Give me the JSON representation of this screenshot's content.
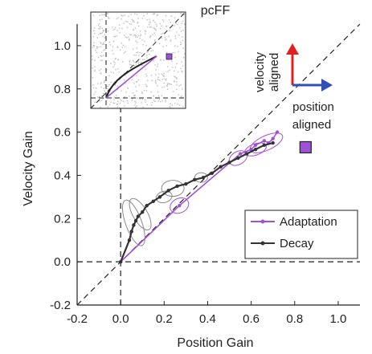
{
  "chart_data": {
    "type": "line",
    "title": "pcFF",
    "xlabel": "Position Gain",
    "ylabel": "Velocity Gain",
    "xlim": [
      -0.2,
      1.1
    ],
    "ylim": [
      -0.2,
      1.1
    ],
    "xticks": [
      "-0.2",
      "0.0",
      "0.2",
      "0.4",
      "0.6",
      "0.8",
      "1.0"
    ],
    "xtick_values": [
      -0.2,
      0.0,
      0.2,
      0.4,
      0.6,
      0.8,
      1.0
    ],
    "yticks": [
      "-0.2",
      "0.0",
      "0.2",
      "0.4",
      "0.6",
      "0.8",
      "1.0"
    ],
    "ytick_values": [
      -0.2,
      0.0,
      0.2,
      0.4,
      0.6,
      0.8,
      1.0
    ],
    "grid": false,
    "legend_position": "lower-right",
    "series": [
      {
        "name": "Adaptation",
        "color": "#a050d8",
        "x": [
          0.0,
          0.27,
          0.55,
          0.6,
          0.62,
          0.66,
          0.68,
          0.7,
          0.72
        ],
        "y": [
          0.0,
          0.26,
          0.5,
          0.52,
          0.54,
          0.56,
          0.55,
          0.57,
          0.6
        ]
      },
      {
        "name": "Decay",
        "color": "#333333",
        "x": [
          0.0,
          0.04,
          0.05,
          0.06,
          0.07,
          0.08,
          0.1,
          0.12,
          0.15,
          0.18,
          0.22,
          0.26,
          0.3,
          0.34,
          0.38,
          0.42,
          0.46,
          0.5,
          0.54,
          0.58,
          0.62,
          0.66,
          0.7
        ],
        "y": [
          0.0,
          0.1,
          0.14,
          0.17,
          0.19,
          0.21,
          0.23,
          0.26,
          0.28,
          0.3,
          0.33,
          0.35,
          0.36,
          0.38,
          0.39,
          0.41,
          0.44,
          0.46,
          0.48,
          0.5,
          0.52,
          0.54,
          0.55
        ]
      }
    ],
    "reference_point": {
      "x": 0.85,
      "y": 0.53,
      "color": "#a050d8"
    },
    "annotations": {
      "velocity_line1": "velocity",
      "velocity_line2": "aligned",
      "position_line1": "position",
      "position_line2": "aligned"
    },
    "arrow_colors": {
      "velocity": "#e02020",
      "position": "#3050b8"
    }
  }
}
